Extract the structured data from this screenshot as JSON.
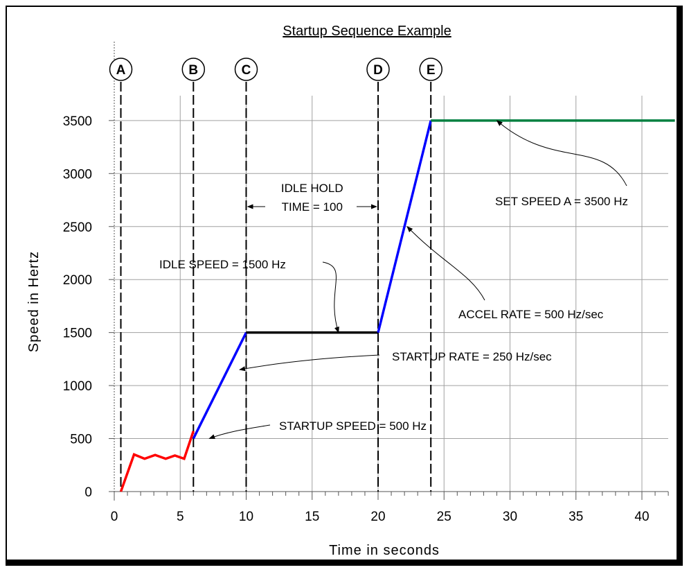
{
  "chart_data": {
    "type": "line",
    "title": "Startup Sequence Example",
    "xlabel": "Time in seconds",
    "ylabel": "Speed in Hertz",
    "xlim": [
      0,
      42.5
    ],
    "ylim": [
      0,
      3500
    ],
    "xticks": [
      "0",
      "5",
      "10",
      "15",
      "20",
      "25",
      "30",
      "35",
      "40"
    ],
    "xtick_values": [
      0,
      5,
      10,
      15,
      20,
      25,
      30,
      35,
      40
    ],
    "yticks": [
      "0",
      "500",
      "1000",
      "1500",
      "2000",
      "2500",
      "3000",
      "3500"
    ],
    "ytick_values": [
      0,
      500,
      1000,
      1500,
      2000,
      2500,
      3000,
      3500
    ],
    "grid": true,
    "series": [
      {
        "color": "#ff0000",
        "x": [
          0.5,
          1.5,
          2.3,
          3.1,
          3.9,
          4.6,
          5.3,
          6.0
        ],
        "y": [
          0,
          350,
          310,
          345,
          310,
          340,
          310,
          570
        ]
      },
      {
        "color": "#0000ff",
        "x": [
          6,
          10
        ],
        "y": [
          500,
          1500
        ]
      },
      {
        "color": "#000000",
        "x": [
          10,
          20
        ],
        "y": [
          1500,
          1500
        ]
      },
      {
        "color": "#0000ff",
        "x": [
          20,
          24
        ],
        "y": [
          1500,
          3500
        ]
      },
      {
        "color": "#008040",
        "x": [
          24,
          42.5
        ],
        "y": [
          3500,
          3500
        ]
      }
    ],
    "markers": [
      {
        "label": "A",
        "x": 0.5
      },
      {
        "label": "B",
        "x": 6
      },
      {
        "label": "C",
        "x": 10
      },
      {
        "label": "D",
        "x": 20
      },
      {
        "label": "E",
        "x": 24
      }
    ],
    "annotations": [
      {
        "name": "set-speed",
        "text": "SET SPEED A = 3500 Hz",
        "point_x": 29,
        "point_y": 3500
      },
      {
        "name": "accel-rate",
        "text": "ACCEL RATE = 500 Hz/sec",
        "point_x": 22.2,
        "point_y": 2500
      },
      {
        "name": "idle-speed",
        "text": "IDLE SPEED = 1500 Hz",
        "point_x": 17,
        "point_y": 1500
      },
      {
        "name": "startup-rate",
        "text": "STARTUP RATE = 250 Hz/sec",
        "point_x": 9.5,
        "point_y": 1150
      },
      {
        "name": "startup-speed",
        "text": "STARTUP SPEED = 500 Hz",
        "point_x": 7.2,
        "point_y": 500
      }
    ],
    "idle_hold": {
      "line1": "IDLE HOLD",
      "line2": "TIME = 100",
      "x_start": 10,
      "x_end": 20
    }
  }
}
